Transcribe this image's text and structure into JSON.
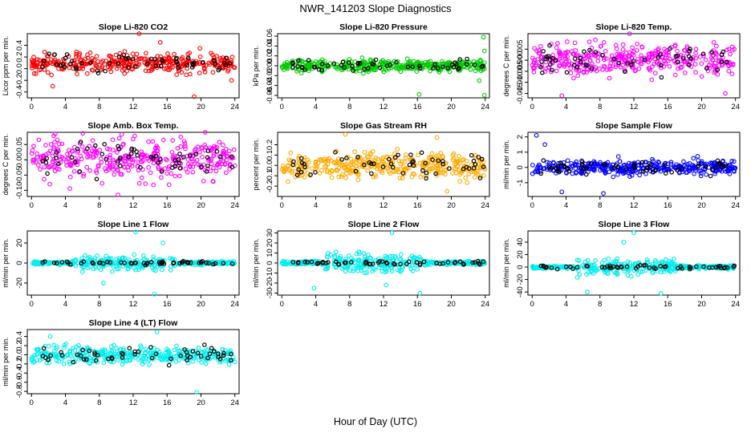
{
  "figure": {
    "title": "NWR_141203  Slope Diagnostics",
    "xlabel": "Hour of Day (UTC)"
  },
  "chart_data": [
    {
      "type": "scatter",
      "title": "Slope Li-820 CO2",
      "ylabel": "Licor ppm per min.",
      "color": "#ff0000",
      "ylim": [
        -0.5,
        0.6
      ],
      "yticks": [
        -0.4,
        -0.2,
        0.0,
        0.2,
        0.4
      ],
      "ytick_labels": [
        "-0.4",
        "-0.2",
        "0.0",
        "0.2",
        "0.4"
      ],
      "xticks": [
        0,
        4,
        8,
        12,
        16,
        20,
        24
      ],
      "xlim": [
        -0.5,
        24.5
      ],
      "center": 0.1,
      "spread": 0.12,
      "outliers": [
        [
          12.7,
          0.6
        ],
        [
          19.2,
          -0.48
        ],
        [
          15.2,
          0.45
        ],
        [
          2.5,
          -0.3
        ],
        [
          23.6,
          -0.2
        ]
      ]
    },
    {
      "type": "scatter",
      "title": "Slope Li-820 Pressure",
      "ylabel": "kPa per min.",
      "color": "#00cc00",
      "ylim": [
        -0.065,
        0.065
      ],
      "yticks": [
        -0.06,
        -0.04,
        -0.02,
        0.0,
        0.02,
        0.04,
        0.06
      ],
      "ytick_labels": [
        "-0.06",
        "-0.04",
        "-0.02",
        "0.00",
        "0.02",
        "0.04",
        "0.06"
      ],
      "xticks": [
        0,
        4,
        8,
        12,
        16,
        20,
        24
      ],
      "xlim": [
        -0.5,
        24.5
      ],
      "center": 0.0,
      "spread": 0.008,
      "outliers": [
        [
          23.8,
          0.058
        ],
        [
          23.9,
          -0.06
        ],
        [
          23.3,
          -0.03
        ],
        [
          16.2,
          -0.058
        ],
        [
          23.9,
          0.03
        ]
      ]
    },
    {
      "type": "scatter",
      "title": "Slope Li-820 Temp.",
      "ylabel": "degrees C per min.",
      "color": "#ff00ff",
      "ylim": [
        -0.017,
        0.012
      ],
      "yticks": [
        -0.015,
        -0.01,
        -0.005,
        0.0,
        0.005
      ],
      "ytick_labels": [
        "-0.015",
        "-0.010",
        "-0.005",
        "0.000",
        "0.005"
      ],
      "xticks": [
        0,
        4,
        8,
        12,
        16,
        20,
        24
      ],
      "xlim": [
        -0.5,
        24.5
      ],
      "center": 0.0,
      "spread": 0.005,
      "outliers": [
        [
          3.5,
          -0.016
        ],
        [
          11.5,
          0.012
        ],
        [
          22.8,
          -0.015
        ]
      ]
    },
    {
      "type": "scatter",
      "title": "Slope Amb. Box Temp.",
      "ylabel": "degrees C per min.",
      "color": "#ff00ff",
      "ylim": [
        -0.12,
        0.09
      ],
      "yticks": [
        -0.1,
        -0.05,
        0.0,
        0.05
      ],
      "ytick_labels": [
        "-0.10",
        "-0.05",
        "0.00",
        "0.05"
      ],
      "xticks": [
        0,
        4,
        8,
        12,
        16,
        20,
        24
      ],
      "xlim": [
        -0.5,
        24.5
      ],
      "center": 0.0,
      "spread": 0.045,
      "outliers": [
        [
          2.8,
          0.085
        ],
        [
          10.2,
          -0.115
        ],
        [
          20.5,
          0.09
        ]
      ]
    },
    {
      "type": "scatter",
      "title": "Slope Gas Stream RH",
      "ylabel": "percent per min.",
      "color": "#ffaa00",
      "ylim": [
        -0.3,
        0.32
      ],
      "yticks": [
        -0.2,
        -0.1,
        0.0,
        0.1,
        0.2
      ],
      "ytick_labels": [
        "-0.2",
        "-0.1",
        "0.0",
        "0.1",
        "0.2"
      ],
      "xticks": [
        0,
        4,
        8,
        12,
        16,
        20,
        24
      ],
      "xlim": [
        -0.5,
        24.5
      ],
      "center": 0.0,
      "spread": 0.09,
      "outliers": [
        [
          7.5,
          0.3
        ],
        [
          19.5,
          -0.25
        ],
        [
          18.3,
          0.27
        ]
      ]
    },
    {
      "type": "scatter",
      "title": "Slope Sample Flow",
      "ylabel": "ml/min per min.",
      "color": "#0000ff",
      "ylim": [
        -1.9,
        2.3
      ],
      "yticks": [
        -1,
        0,
        1,
        2
      ],
      "ytick_labels": [
        "-1",
        "0",
        "1",
        "2"
      ],
      "xticks": [
        0,
        4,
        8,
        12,
        16,
        20,
        24
      ],
      "xlim": [
        -0.5,
        24.5
      ],
      "center": 0.0,
      "spread": 0.35,
      "outliers": [
        [
          0.5,
          2.1
        ],
        [
          8.4,
          -1.7
        ],
        [
          3.5,
          -1.6
        ],
        [
          1.5,
          1.5
        ]
      ]
    },
    {
      "type": "scatter",
      "title": "Slope Line 1 Flow",
      "ylabel": "ml/min per min.",
      "color": "#00eeee",
      "ylim": [
        -32,
        32
      ],
      "yticks": [
        -20,
        0,
        20
      ],
      "ytick_labels": [
        "-20",
        "0",
        "20"
      ],
      "xticks": [
        0,
        4,
        8,
        12,
        16,
        20,
        24
      ],
      "xlim": [
        -0.5,
        24.5
      ],
      "center": 0.0,
      "spread": 3,
      "outliers": [
        [
          12.3,
          31
        ],
        [
          14.5,
          -31
        ],
        [
          8.5,
          -20
        ],
        [
          15.5,
          20
        ]
      ]
    },
    {
      "type": "scatter",
      "title": "Slope Line 2 Flow",
      "ylabel": "ml/min per min.",
      "color": "#00eeee",
      "ylim": [
        -32,
        32
      ],
      "yticks": [
        -30,
        -20,
        -10,
        0,
        10,
        20,
        30
      ],
      "ytick_labels": [
        "-30",
        "-20",
        "-10",
        "0",
        "10",
        "20",
        "30"
      ],
      "xticks": [
        0,
        4,
        8,
        12,
        16,
        20,
        24
      ],
      "xlim": [
        -0.5,
        24.5
      ],
      "center": 0.0,
      "spread": 3.5,
      "outliers": [
        [
          13.0,
          30
        ],
        [
          16.3,
          -30
        ],
        [
          3.8,
          -25
        ],
        [
          12.3,
          -22
        ]
      ]
    },
    {
      "type": "scatter",
      "title": "Slope Line 3 Flow",
      "ylabel": "ml/min per min.",
      "color": "#00eeee",
      "ylim": [
        -45,
        58
      ],
      "yticks": [
        -40,
        -20,
        0,
        20,
        40
      ],
      "ytick_labels": [
        "-40",
        "-20",
        "0",
        "20",
        "40"
      ],
      "xticks": [
        0,
        4,
        8,
        12,
        16,
        20,
        24
      ],
      "xlim": [
        -0.5,
        24.5
      ],
      "center": 0.0,
      "spread": 5,
      "outliers": [
        [
          12.0,
          55
        ],
        [
          15.2,
          -42
        ],
        [
          6.5,
          -40
        ],
        [
          10.8,
          40
        ]
      ]
    },
    {
      "type": "scatter",
      "title": "Slope Line 4 (LT) Flow",
      "ylabel": "ml/min per min.",
      "color": "#00eeee",
      "ylim": [
        -0.85,
        0.55
      ],
      "yticks": [
        -0.8,
        -0.6,
        -0.4,
        -0.2,
        0.0,
        0.2,
        0.4
      ],
      "ytick_labels": [
        "-0.8",
        "-0.6",
        "-0.4",
        "-0.2",
        "0.0",
        "0.2",
        "0.4"
      ],
      "xticks": [
        0,
        4,
        8,
        12,
        16,
        20,
        24
      ],
      "xlim": [
        -0.5,
        24.5
      ],
      "center": 0.0,
      "spread": 0.14,
      "outliers": [
        [
          19.5,
          -0.82
        ],
        [
          14.8,
          0.5
        ],
        [
          2.2,
          0.4
        ]
      ]
    }
  ]
}
